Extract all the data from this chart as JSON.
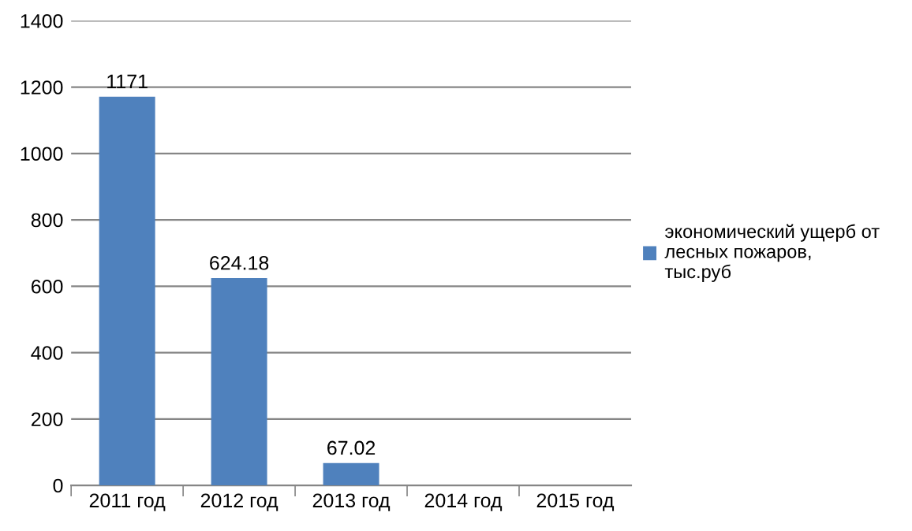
{
  "chart_data": {
    "type": "bar",
    "categories": [
      "2011 год",
      "2012 год",
      "2013 год",
      "2014 год",
      "2015 год"
    ],
    "series": [
      {
        "name": "экономический ущерб от лесных пожаров, тыс.руб",
        "color": "#4f81bd",
        "values": [
          1171,
          624.18,
          67.02,
          null,
          null
        ]
      }
    ],
    "ylim": [
      0,
      1400
    ],
    "yticks": [
      0,
      200,
      400,
      600,
      800,
      1000,
      1200,
      1400
    ],
    "grid": "y",
    "legend": "right",
    "data_labels": true
  }
}
